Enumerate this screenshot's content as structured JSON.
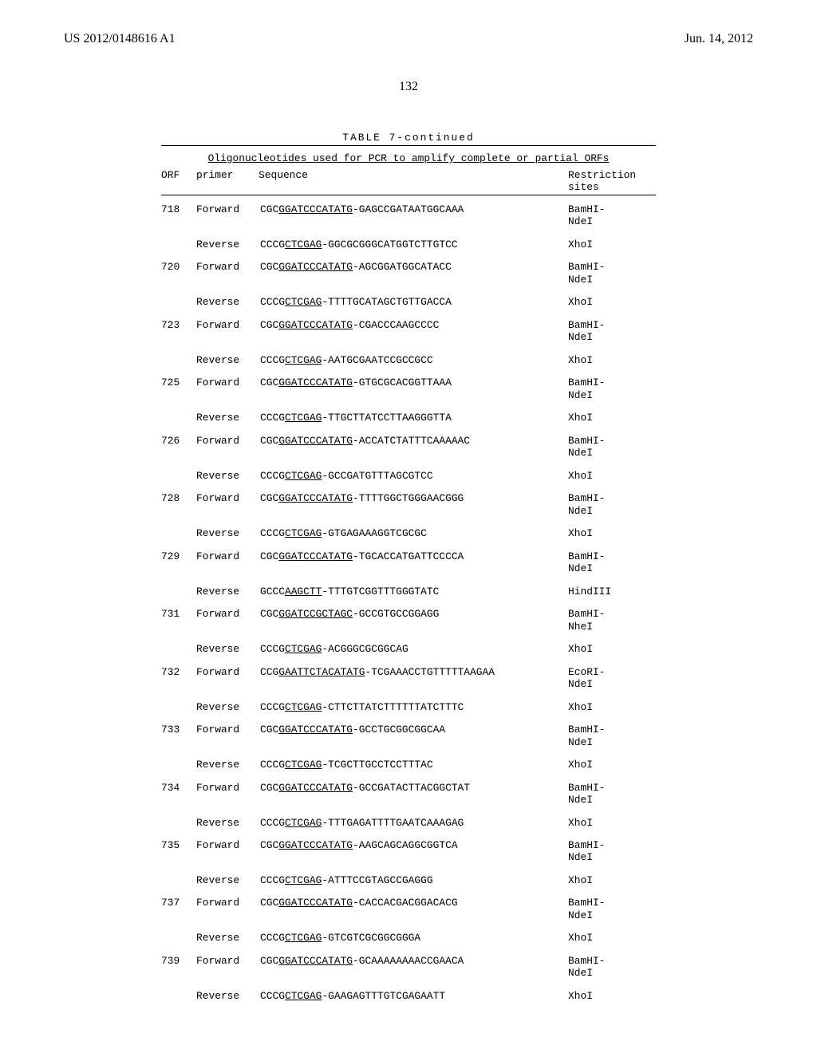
{
  "header": {
    "publication_number": "US 2012/0148616 A1",
    "publication_date": "Jun. 14, 2012",
    "page_number": "132"
  },
  "table": {
    "caption": "TABLE 7-continued",
    "subcaption": "Oligonucleotides used for PCR to amplify complete or partial ORFs",
    "columns": {
      "orf": "ORF",
      "primer": "primer",
      "sequence": "Sequence",
      "sites": "Restriction\nsites"
    },
    "rows": [
      {
        "orf": "718",
        "primer": "Forward",
        "seq_pre": "CGC",
        "seq_ul": "GGATCCCATATG",
        "seq_suf": "-GAGCCGATAATGGCAAA",
        "site1": "BamHI-",
        "site2": "NdeI"
      },
      {
        "orf": "",
        "primer": "Reverse",
        "seq_pre": "CCCG",
        "seq_ul": "CTCGAG",
        "seq_suf": "-GGCGCGGGCATGGTCTTGTCC",
        "site1": "XhoI",
        "site2": ""
      },
      {
        "orf": "720",
        "primer": "Forward",
        "seq_pre": "CGC",
        "seq_ul": "GGATCCCATATG",
        "seq_suf": "-AGCGGATGGCATACC",
        "site1": "BamHI-",
        "site2": "NdeI"
      },
      {
        "orf": "",
        "primer": "Reverse",
        "seq_pre": "CCCG",
        "seq_ul": "CTCGAG",
        "seq_suf": "-TTTTGCATAGCTGTTGACCA",
        "site1": "XhoI",
        "site2": ""
      },
      {
        "orf": "723",
        "primer": "Forward",
        "seq_pre": "CGC",
        "seq_ul": "GGATCCCATATG",
        "seq_suf": "-CGACCCAAGCCCC",
        "site1": "BamHI-",
        "site2": "NdeI"
      },
      {
        "orf": "",
        "primer": "Reverse",
        "seq_pre": "CCCG",
        "seq_ul": "CTCGAG",
        "seq_suf": "-AATGCGAATCCGCCGCC",
        "site1": "XhoI",
        "site2": ""
      },
      {
        "orf": "725",
        "primer": "Forward",
        "seq_pre": "CGC",
        "seq_ul": "GGATCCCATATG",
        "seq_suf": "-GTGCGCACGGTTAAA",
        "site1": "BamHI-",
        "site2": "NdeI"
      },
      {
        "orf": "",
        "primer": "Reverse",
        "seq_pre": "CCCG",
        "seq_ul": "CTCGAG",
        "seq_suf": "-TTGCTTATCCTTAAGGGTTA",
        "site1": "XhoI",
        "site2": ""
      },
      {
        "orf": "726",
        "primer": "Forward",
        "seq_pre": "CGC",
        "seq_ul": "GGATCCCATATG",
        "seq_suf": "-ACCATCTATTTCAAAAAC",
        "site1": "BamHI-",
        "site2": "NdeI"
      },
      {
        "orf": "",
        "primer": "Reverse",
        "seq_pre": "CCCG",
        "seq_ul": "CTCGAG",
        "seq_suf": "-GCCGATGTTTAGCGTCC",
        "site1": "XhoI",
        "site2": ""
      },
      {
        "orf": "728",
        "primer": "Forward",
        "seq_pre": "CGC",
        "seq_ul": "GGATCCCATATG",
        "seq_suf": "-TTTTGGCTGGGAACGGG",
        "site1": "BamHI-",
        "site2": "NdeI"
      },
      {
        "orf": "",
        "primer": "Reverse",
        "seq_pre": "CCCG",
        "seq_ul": "CTCGAG",
        "seq_suf": "-GTGAGAAAGGTCGCGC",
        "site1": "XhoI",
        "site2": ""
      },
      {
        "orf": "729",
        "primer": "Forward",
        "seq_pre": "CGC",
        "seq_ul": "GGATCCCATATG",
        "seq_suf": "-TGCACCATGATTCCCCA",
        "site1": "BamHI-",
        "site2": "NdeI"
      },
      {
        "orf": "",
        "primer": "Reverse",
        "seq_pre": "GCCC",
        "seq_ul": "AAGCTT",
        "seq_suf": "-TTTGTCGGTTTGGGTATC",
        "site1": "HindIII",
        "site2": ""
      },
      {
        "orf": "731",
        "primer": "Forward",
        "seq_pre": "CGC",
        "seq_ul": "GGATCCGCTAGC",
        "seq_suf": "-GCCGTGCCGGAGG",
        "site1": "BamHI-",
        "site2": "NheI"
      },
      {
        "orf": "",
        "primer": "Reverse",
        "seq_pre": "CCCG",
        "seq_ul": "CTCGAG",
        "seq_suf": "-ACGGGCGCGGCAG",
        "site1": "XhoI",
        "site2": ""
      },
      {
        "orf": "732",
        "primer": "Forward",
        "seq_pre": "CCG",
        "seq_ul": "GAATTCTACATATG",
        "seq_suf": "-TCGAAACCTGTTTTTAAGAA",
        "site1": "EcoRI-",
        "site2": "NdeI"
      },
      {
        "orf": "",
        "primer": "Reverse",
        "seq_pre": "CCCG",
        "seq_ul": "CTCGAG",
        "seq_suf": "-CTTCTTATCTTTTTTATCTTTC",
        "site1": "XhoI",
        "site2": ""
      },
      {
        "orf": "733",
        "primer": "Forward",
        "seq_pre": "CGC",
        "seq_ul": "GGATCCCATATG",
        "seq_suf": "-GCCTGCGGCGGCAA",
        "site1": "BamHI-",
        "site2": "NdeI"
      },
      {
        "orf": "",
        "primer": "Reverse",
        "seq_pre": "CCCG",
        "seq_ul": "CTCGAG",
        "seq_suf": "-TCGCTTGCCTCCTTTAC",
        "site1": "XhoI",
        "site2": ""
      },
      {
        "orf": "734",
        "primer": "Forward",
        "seq_pre": "CGC",
        "seq_ul": "GGATCCCATATG",
        "seq_suf": "-GCCGATACTTACGGCTAT",
        "site1": "BamHI-",
        "site2": "NdeI"
      },
      {
        "orf": "",
        "primer": "Reverse",
        "seq_pre": "CCCG",
        "seq_ul": "CTCGAG",
        "seq_suf": "-TTTGAGATTTTGAATCAAAGAG",
        "site1": "XhoI",
        "site2": ""
      },
      {
        "orf": "735",
        "primer": "Forward",
        "seq_pre": "CGC",
        "seq_ul": "GGATCCCATATG",
        "seq_suf": "-AAGCAGCAGGCGGTCA",
        "site1": "BamHI-",
        "site2": "NdeI"
      },
      {
        "orf": "",
        "primer": "Reverse",
        "seq_pre": "CCCG",
        "seq_ul": "CTCGAG",
        "seq_suf": "-ATTTCCGTAGCCGAGGG",
        "site1": "XhoI",
        "site2": ""
      },
      {
        "orf": "737",
        "primer": "Forward",
        "seq_pre": "CGC",
        "seq_ul": "GGATCCCATATG",
        "seq_suf": "-CACCACGACGGACACG",
        "site1": "BamHI-",
        "site2": "NdeI"
      },
      {
        "orf": "",
        "primer": "Reverse",
        "seq_pre": "CCCG",
        "seq_ul": "CTCGAG",
        "seq_suf": "-GTCGTCGCGGCGGGA",
        "site1": "XhoI",
        "site2": ""
      },
      {
        "orf": "739",
        "primer": "Forward",
        "seq_pre": "CGC",
        "seq_ul": "GGATCCCATATG",
        "seq_suf": "-GCAAAAAAAACCGAACA",
        "site1": "BamHI-",
        "site2": "NdeI"
      },
      {
        "orf": "",
        "primer": "Reverse",
        "seq_pre": "CCCG",
        "seq_ul": "CTCGAG",
        "seq_suf": "-GAAGAGTTTGTCGAGAATT",
        "site1": "XhoI",
        "site2": ""
      }
    ]
  }
}
